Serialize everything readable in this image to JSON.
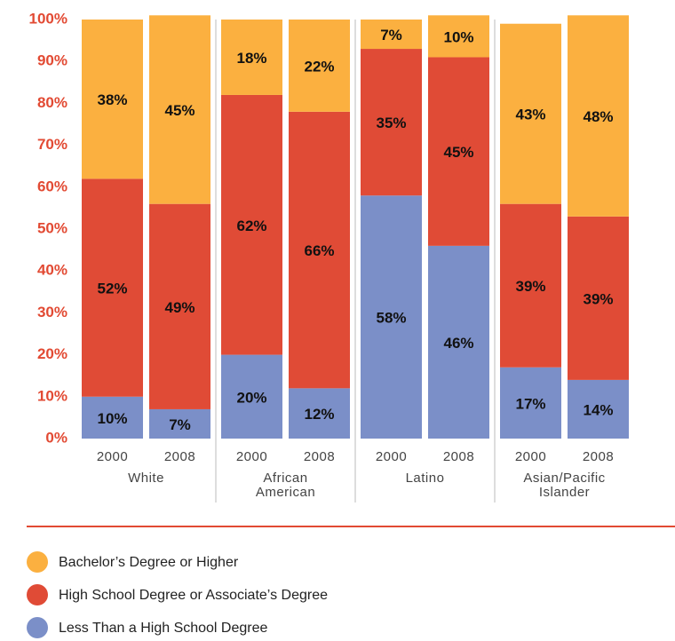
{
  "chart_data": {
    "type": "stacked-bar",
    "categories": [
      "2000",
      "2008",
      "2000",
      "2008",
      "2000",
      "2008",
      "2000",
      "2008"
    ],
    "groups": [
      "White",
      "African American",
      "Latino",
      "Asian/Pacific Islander"
    ],
    "series": [
      {
        "name": "Less Than a High School Degree",
        "color": "#7b8fc8",
        "values": [
          10,
          7,
          20,
          12,
          58,
          46,
          17,
          14
        ],
        "value_labels": [
          "10%",
          "7%",
          "20%",
          "12%",
          "58%",
          "46%",
          "17%",
          "14%"
        ]
      },
      {
        "name": "High School Degree or Associate’s Degree",
        "color": "#e04b36",
        "values": [
          52,
          49,
          62,
          66,
          35,
          45,
          39,
          39
        ],
        "value_labels": [
          "52%",
          "49%",
          "62%",
          "66%",
          "35%",
          "45%",
          "39%",
          "39%"
        ]
      },
      {
        "name": "Bachelor’s Degree or Higher",
        "color": "#fbb040",
        "values": [
          38,
          45,
          18,
          22,
          7,
          10,
          43,
          48
        ],
        "value_labels": [
          "38%",
          "45%",
          "18%",
          "22%",
          "7%",
          "10%",
          "43%",
          "48%"
        ]
      }
    ],
    "ylim": [
      0,
      100
    ],
    "yticks": [
      {
        "value": 0,
        "label": "0%"
      },
      {
        "value": 10,
        "label": "10%"
      },
      {
        "value": 20,
        "label": "20%"
      },
      {
        "value": 30,
        "label": "30%"
      },
      {
        "value": 40,
        "label": "40%"
      },
      {
        "value": 50,
        "label": "50%"
      },
      {
        "value": 60,
        "label": "60%"
      },
      {
        "value": 70,
        "label": "70%"
      },
      {
        "value": 80,
        "label": "80%"
      },
      {
        "value": 90,
        "label": "90%"
      },
      {
        "value": 100,
        "label": "100%"
      }
    ],
    "grid": false
  }
}
